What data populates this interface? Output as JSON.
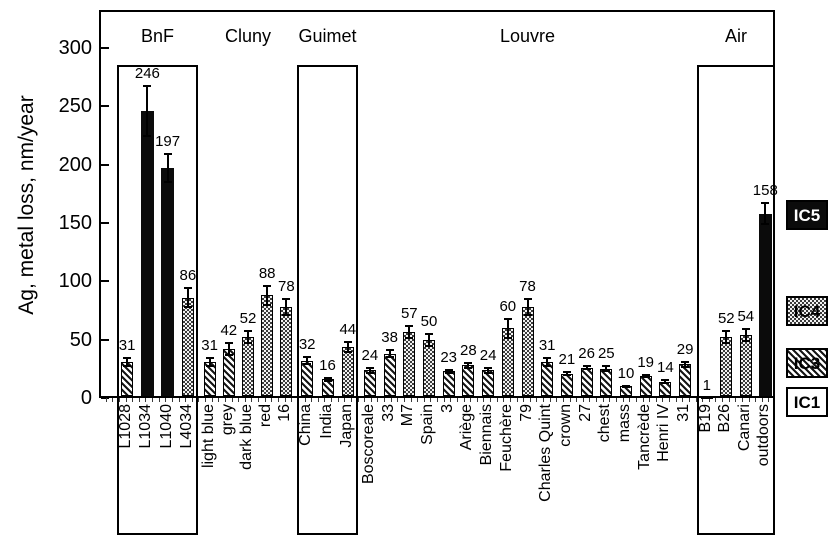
{
  "figure": {
    "kind": "grouped-bar-chart-with-error-bars"
  },
  "chart_data": {
    "type": "bar",
    "title": "",
    "xlabel": "",
    "ylabel": "Ag, metal loss, nm/year",
    "ylim": [
      0,
      300
    ],
    "yticks": [
      0,
      50,
      100,
      150,
      200,
      250,
      300
    ],
    "grid": false,
    "legend_position": "right-outside",
    "legend": [
      {
        "label": "IC5",
        "pattern": "solid-black"
      },
      {
        "label": "IC4",
        "pattern": "checkerboard"
      },
      {
        "label": "IC3",
        "pattern": "diagonal-hatch"
      },
      {
        "label": "IC1",
        "pattern": "plain-white"
      }
    ],
    "groups": [
      {
        "name": "BnF",
        "boxed": true,
        "bars": [
          {
            "label": "L1028",
            "value": 31,
            "err": 4,
            "series": "IC3"
          },
          {
            "label": "L1034",
            "value": 246,
            "err": 22,
            "series": "IC5"
          },
          {
            "label": "L1040",
            "value": 197,
            "err": 13,
            "series": "IC5"
          },
          {
            "label": "L4034",
            "value": 86,
            "err": 9,
            "series": "IC4"
          }
        ]
      },
      {
        "name": "Cluny",
        "boxed": false,
        "bars": [
          {
            "label": "light blue",
            "value": 31,
            "err": 4,
            "series": "IC3"
          },
          {
            "label": "grey",
            "value": 42,
            "err": 6,
            "series": "IC3"
          },
          {
            "label": "dark blue",
            "value": 52,
            "err": 6,
            "series": "IC4"
          },
          {
            "label": "red",
            "value": 88,
            "err": 9,
            "series": "IC4"
          },
          {
            "label": "16",
            "value": 78,
            "err": 8,
            "series": "IC4"
          }
        ]
      },
      {
        "name": "Guimet",
        "boxed": true,
        "bars": [
          {
            "label": "China",
            "value": 32,
            "err": 4,
            "series": "IC3"
          },
          {
            "label": "India",
            "value": 16,
            "err": 2,
            "series": "IC3"
          },
          {
            "label": "Japan",
            "value": 44,
            "err": 5,
            "series": "IC4"
          }
        ]
      },
      {
        "name": "Louvre",
        "boxed": false,
        "bars": [
          {
            "label": "Boscoreale",
            "value": 24,
            "err": 3,
            "series": "IC3"
          },
          {
            "label": "33",
            "value": 38,
            "err": 4,
            "series": "IC3"
          },
          {
            "label": "M7",
            "value": 57,
            "err": 6,
            "series": "IC4"
          },
          {
            "label": "Spain",
            "value": 50,
            "err": 6,
            "series": "IC4"
          },
          {
            "label": "3",
            "value": 23,
            "err": 2,
            "series": "IC3"
          },
          {
            "label": "Ariège",
            "value": 28,
            "err": 3,
            "series": "IC3"
          },
          {
            "label": "Biennais",
            "value": 24,
            "err": 3,
            "series": "IC3"
          },
          {
            "label": "Feuchère",
            "value": 60,
            "err": 9,
            "series": "IC4"
          },
          {
            "label": "79",
            "value": 78,
            "err": 8,
            "series": "IC4"
          },
          {
            "label": "Charles Quint",
            "value": 31,
            "err": 4,
            "series": "IC3"
          },
          {
            "label": "crown",
            "value": 21,
            "err": 2,
            "series": "IC3"
          },
          {
            "label": "27",
            "value": 26,
            "err": 2,
            "series": "IC3"
          },
          {
            "label": "chest",
            "value": 25,
            "err": 3,
            "series": "IC3"
          },
          {
            "label": "mass",
            "value": 10,
            "err": 1,
            "series": "IC3"
          },
          {
            "label": "Tancrède",
            "value": 19,
            "err": 2,
            "series": "IC3"
          },
          {
            "label": "Henri IV",
            "value": 14,
            "err": 2,
            "series": "IC3"
          },
          {
            "label": "31",
            "value": 29,
            "err": 3,
            "series": "IC3"
          }
        ]
      },
      {
        "name": "Air",
        "boxed": true,
        "bars": [
          {
            "label": "B19",
            "value": 1,
            "err": 0,
            "series": "IC1"
          },
          {
            "label": "B26",
            "value": 52,
            "err": 6,
            "series": "IC4"
          },
          {
            "label": "Canari",
            "value": 54,
            "err": 6,
            "series": "IC4"
          },
          {
            "label": "outdoors",
            "value": 158,
            "err": 10,
            "series": "IC5"
          }
        ]
      }
    ]
  }
}
